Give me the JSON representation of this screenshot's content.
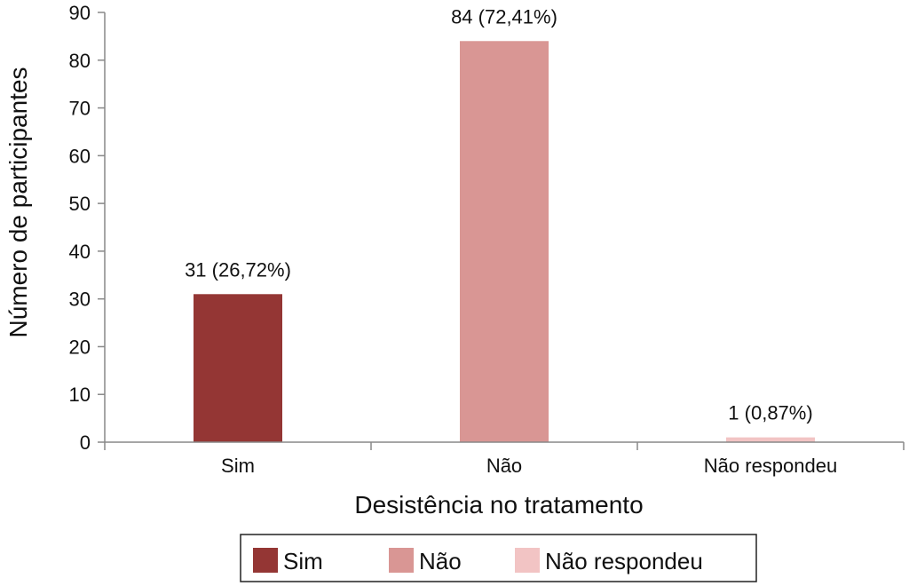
{
  "chart_data": {
    "type": "bar",
    "categories": [
      "Sim",
      "Não",
      "Não respondeu"
    ],
    "values": [
      31,
      84,
      1
    ],
    "data_labels": [
      "31 (26,72%)",
      "84 (72,41%)",
      "1 (0,87%)"
    ],
    "colors": [
      "#943634",
      "#d99694",
      "#f2c4c4"
    ],
    "xlabel": "Desistência no tratamento",
    "ylabel": "Número de participantes",
    "ylim": [
      0,
      90
    ],
    "yticks": [
      0,
      10,
      20,
      30,
      40,
      50,
      60,
      70,
      80,
      90
    ],
    "grid": false,
    "legend": {
      "position": "bottom",
      "entries": [
        "Sim",
        "Não",
        "Não respondeu"
      ]
    }
  }
}
